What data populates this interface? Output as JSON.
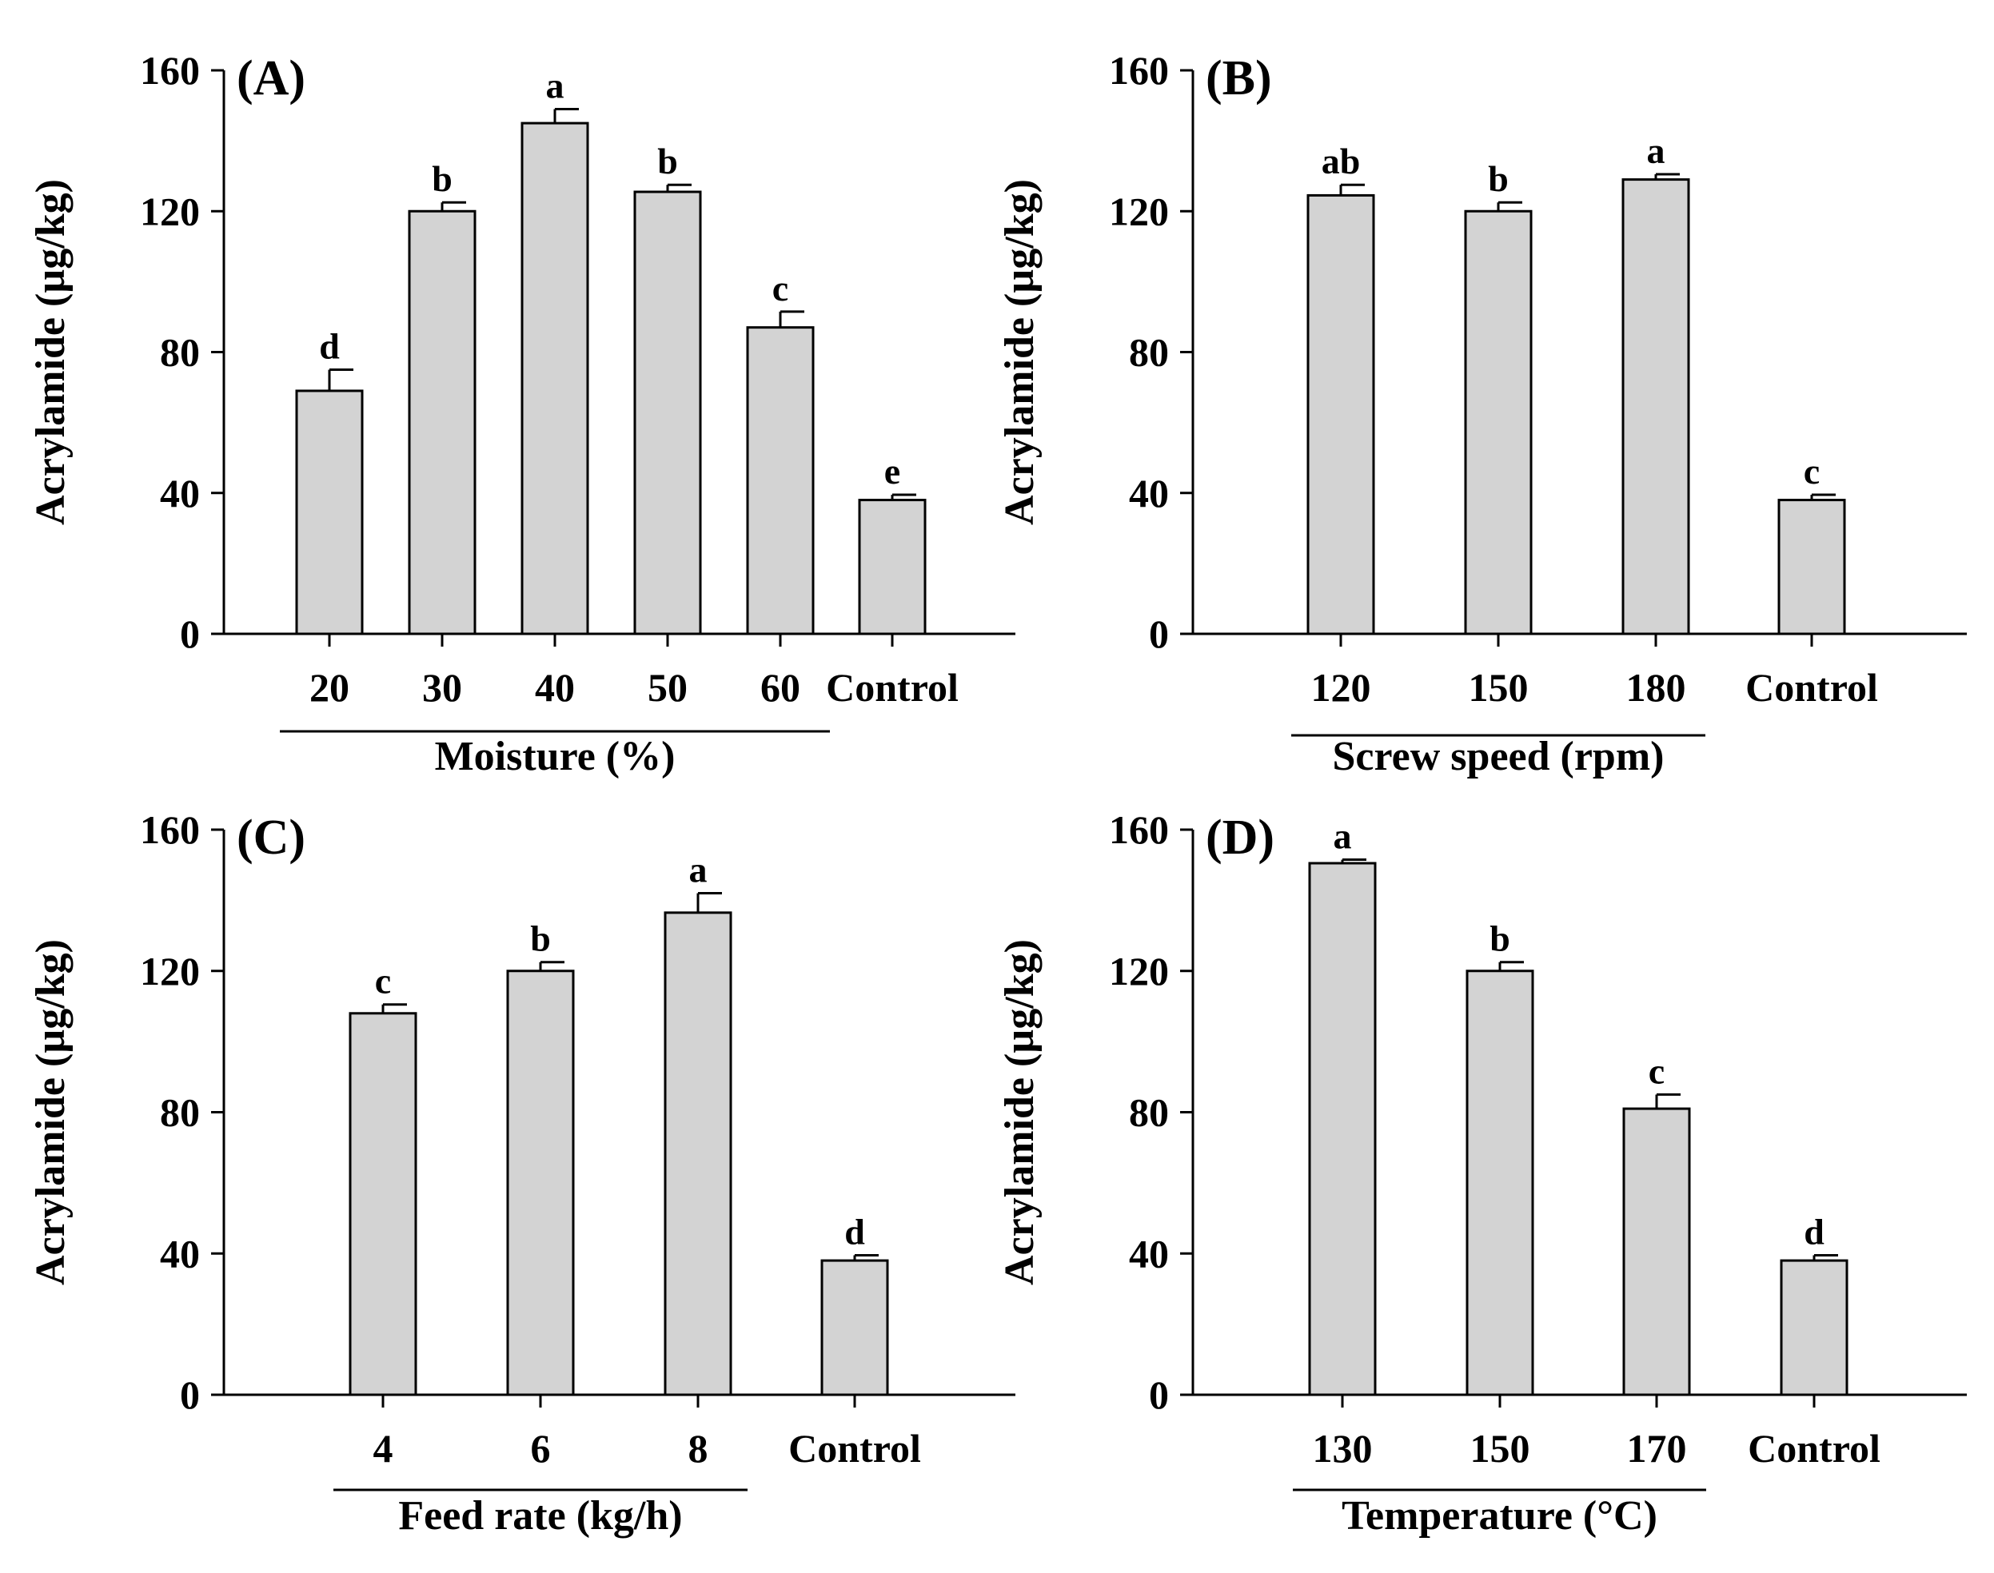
{
  "colors": {
    "bar_fill": "#d3d3d3",
    "stroke": "#000000",
    "background": "#ffffff"
  },
  "chart_data": [
    {
      "type": "bar",
      "panel_label": "(A)",
      "ylabel": "Acrylamide (µg/kg)",
      "xlabel": "Moisture (%)",
      "ylim": [
        0,
        160
      ],
      "yticks": [
        "0",
        "40",
        "80",
        "120",
        "160"
      ],
      "categories": [
        "20",
        "30",
        "40",
        "50",
        "60",
        "Control"
      ],
      "values": [
        69,
        120,
        145,
        125.5,
        87,
        38
      ],
      "errors": [
        6,
        2.5,
        4,
        2,
        4.5,
        1.5
      ],
      "significance": [
        "d",
        "b",
        "a",
        "b",
        "c",
        "e"
      ],
      "grouped_categories": 5,
      "grid": false,
      "legend": "none"
    },
    {
      "type": "bar",
      "panel_label": "(B)",
      "ylabel": "Acrylamide (µg/kg)",
      "xlabel": "Screw speed (rpm)",
      "ylim": [
        0,
        160
      ],
      "yticks": [
        "0",
        "40",
        "80",
        "120",
        "160"
      ],
      "categories": [
        "120",
        "150",
        "180",
        "Control"
      ],
      "values": [
        124.5,
        120,
        129,
        38
      ],
      "errors": [
        3,
        2.5,
        1.5,
        1.5
      ],
      "significance": [
        "ab",
        "b",
        "a",
        "c"
      ],
      "grouped_categories": 3,
      "grid": false,
      "legend": "none"
    },
    {
      "type": "bar",
      "panel_label": "(C)",
      "ylabel": "Acrylamide (µg/kg)",
      "xlabel": "Feed rate (kg/h)",
      "ylim": [
        0,
        160
      ],
      "yticks": [
        "0",
        "40",
        "80",
        "120",
        "160"
      ],
      "categories": [
        "4",
        "6",
        "8",
        "Control"
      ],
      "values": [
        108,
        120,
        136.5,
        38
      ],
      "errors": [
        2.5,
        2.5,
        5.5,
        1.5
      ],
      "significance": [
        "c",
        "b",
        "a",
        "d"
      ],
      "grouped_categories": 3,
      "grid": false,
      "legend": "none"
    },
    {
      "type": "bar",
      "panel_label": "(D)",
      "ylabel": "Acrylamide (µg/kg)",
      "xlabel": "Temperature (°C)",
      "ylim": [
        0,
        160
      ],
      "yticks": [
        "0",
        "40",
        "80",
        "120",
        "160"
      ],
      "categories": [
        "130",
        "150",
        "170",
        "Control"
      ],
      "values": [
        150.5,
        120,
        81,
        38
      ],
      "errors": [
        1,
        2.5,
        4,
        1.5
      ],
      "significance": [
        "a",
        "b",
        "c",
        "d"
      ],
      "grouped_categories": 3,
      "grid": false,
      "legend": "none"
    }
  ]
}
